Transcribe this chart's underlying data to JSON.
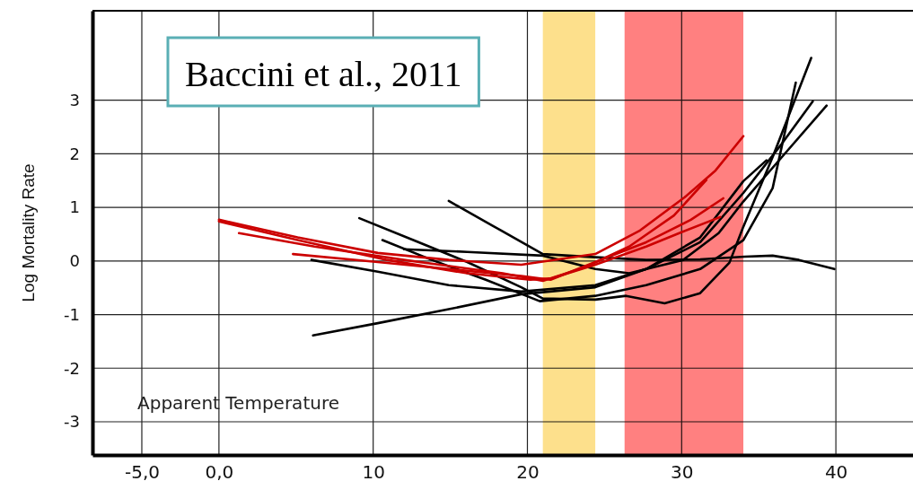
{
  "chart_data": {
    "type": "line",
    "xlabel": "Apparent Temperature",
    "ylabel": "Log Mortality Rate",
    "annotations": [
      "Baccini et al., 2011"
    ],
    "xlim": [
      -8.2,
      45
    ],
    "ylim": [
      -3.62,
      4.67
    ],
    "xticks": [
      {
        "value": -5,
        "label": "-5,0"
      },
      {
        "value": 0,
        "label": "0,0"
      },
      10,
      20,
      30,
      40
    ],
    "yticks": [
      -3,
      -2,
      -1,
      0,
      1,
      2,
      3
    ],
    "grid": true,
    "marker": "none",
    "line_style": "solid",
    "bands": [
      {
        "axis": "x",
        "from": 21.0,
        "to": 24.4,
        "color": "#fde08c"
      },
      {
        "axis": "x",
        "from": 26.3,
        "to": 34.0,
        "color": "#ff8080"
      }
    ],
    "series": [
      {
        "color": "#000000",
        "x": [
          14.9,
          17.8,
          21.0,
          24.4,
          27.7,
          31.2,
          34.1,
          35.9,
          37.6,
          39.9
        ],
        "values": [
          1.12,
          0.65,
          0.13,
          0.07,
          0.02,
          0.03,
          0.08,
          0.1,
          0.02,
          -0.15
        ]
      },
      {
        "color": "#000000",
        "x": [
          9.1,
          12.6,
          16.1,
          19.6,
          21.0,
          24.4,
          26.4,
          28.9,
          31.2,
          33.1,
          34.0,
          35.9,
          38.4
        ],
        "values": [
          0.8,
          0.39,
          -0.02,
          -0.49,
          -0.7,
          -0.72,
          -0.65,
          -0.79,
          -0.6,
          -0.03,
          0.64,
          1.94,
          3.79
        ]
      },
      {
        "color": "#000000",
        "x": [
          10.6,
          13.8,
          17.3,
          20.8,
          24.4,
          27.7,
          31.2,
          34.0,
          35.9,
          37.4
        ],
        "values": [
          0.39,
          0.02,
          -0.35,
          -0.75,
          -0.65,
          -0.45,
          -0.15,
          0.39,
          1.36,
          3.33
        ]
      },
      {
        "color": "#000000",
        "x": [
          6.0,
          10.3,
          14.9,
          19.6,
          24.4,
          27.7,
          31.2,
          34.0,
          35.5
        ],
        "values": [
          0.02,
          -0.2,
          -0.45,
          -0.57,
          -0.45,
          -0.15,
          0.44,
          1.49,
          1.88
        ]
      },
      {
        "color": "#000000",
        "x": [
          6.1,
          10.3,
          14.9,
          19.6,
          24.4,
          27.7,
          31.2,
          34.0,
          36.5,
          38.5
        ],
        "values": [
          -1.39,
          -1.16,
          -0.9,
          -0.62,
          -0.49,
          -0.15,
          0.35,
          1.27,
          2.19,
          2.98
        ]
      },
      {
        "color": "#000000",
        "x": [
          12.0,
          16.1,
          21.0,
          24.4,
          26.6,
          30.1,
          32.4,
          34.0,
          36.5,
          39.4
        ],
        "values": [
          0.22,
          0.17,
          0.1,
          -0.15,
          -0.23,
          0.02,
          0.52,
          1.11,
          1.94,
          2.9
        ]
      },
      {
        "color": "#cc0000",
        "x": [
          0,
          5.1,
          10.3,
          14.9,
          19.6,
          24.4,
          27.3,
          30.2,
          32.2,
          34.0
        ],
        "values": [
          0.77,
          0.44,
          0.15,
          0.02,
          -0.07,
          0.13,
          0.57,
          1.19,
          1.69,
          2.33
        ]
      },
      {
        "color": "#cc0000",
        "x": [
          1.3,
          6.2,
          12.0,
          18.4,
          21.0,
          23.7,
          26.6,
          29.5,
          31.6
        ],
        "values": [
          0.52,
          0.27,
          0.02,
          -0.23,
          -0.37,
          -0.12,
          0.27,
          0.85,
          1.51
        ]
      },
      {
        "color": "#cc0000",
        "x": [
          4.8,
          10.3,
          14.9,
          19.6,
          21.5,
          24.4,
          27.7,
          30.6,
          32.7
        ],
        "values": [
          0.13,
          -0.02,
          -0.15,
          -0.28,
          -0.35,
          -0.02,
          0.35,
          0.77,
          1.17
        ]
      },
      {
        "color": "#cc0000",
        "x": [
          0,
          5.1,
          10.9,
          16.1,
          20.2,
          21.6,
          24.4,
          27.7,
          30.1,
          32.5
        ],
        "values": [
          0.74,
          0.39,
          0.02,
          -0.23,
          -0.35,
          -0.32,
          -0.07,
          0.27,
          0.55,
          0.82
        ]
      }
    ]
  }
}
